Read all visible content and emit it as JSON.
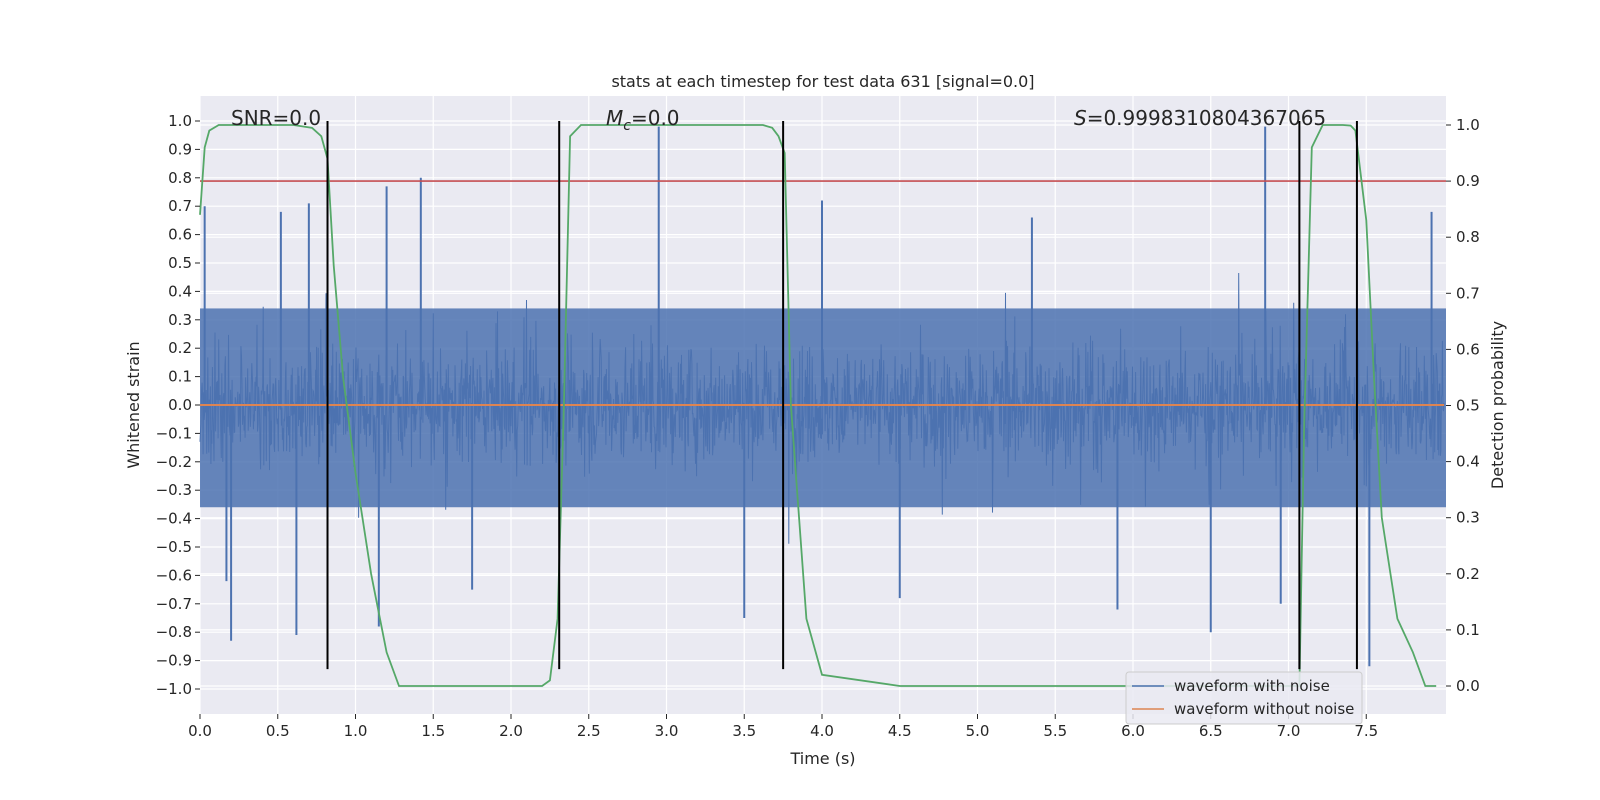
{
  "chart_data": {
    "type": "line",
    "title": "stats at each timestep for test data 631 [signal=0.0]",
    "xlabel": "Time (s)",
    "ylabel": "Whitened strain",
    "ylabel_right": "Detection probability",
    "xlim": [
      0.0,
      8.0
    ],
    "ylim": [
      -1.05,
      1.05
    ],
    "ylim_right": [
      -0.05,
      1.05
    ],
    "x_ticks": [
      0.0,
      0.5,
      1.0,
      1.5,
      2.0,
      2.5,
      3.0,
      3.5,
      4.0,
      4.5,
      5.0,
      5.5,
      6.0,
      6.5,
      7.0,
      7.5
    ],
    "x_tick_labels": [
      "0.0",
      "0.5",
      "1.0",
      "1.5",
      "2.0",
      "2.5",
      "3.0",
      "3.5",
      "4.0",
      "4.5",
      "5.0",
      "5.5",
      "6.0",
      "6.5",
      "7.0",
      "7.5"
    ],
    "y_ticks": [
      -1.0,
      -0.9,
      -0.8,
      -0.7,
      -0.6,
      -0.5,
      -0.4,
      -0.3,
      -0.2,
      -0.1,
      0.0,
      0.1,
      0.2,
      0.3,
      0.4,
      0.5,
      0.6,
      0.7,
      0.8,
      0.9,
      1.0
    ],
    "y_tick_labels": [
      "−1.0",
      "−0.9",
      "−0.8",
      "−0.7",
      "−0.6",
      "−0.5",
      "−0.4",
      "−0.3",
      "−0.2",
      "−0.1",
      "0.0",
      "0.1",
      "0.2",
      "0.3",
      "0.4",
      "0.5",
      "0.6",
      "0.7",
      "0.8",
      "0.9",
      "1.0"
    ],
    "y_right_ticks": [
      0.0,
      0.1,
      0.2,
      0.3,
      0.4,
      0.5,
      0.6,
      0.7,
      0.8,
      0.9,
      1.0
    ],
    "y_right_tick_labels": [
      "0.0",
      "0.1",
      "0.2",
      "0.3",
      "0.4",
      "0.5",
      "0.6",
      "0.7",
      "0.8",
      "0.9",
      "1.0"
    ],
    "grid": true,
    "legend_position": "lower-right",
    "annotations": {
      "snr": "SNR=0.0",
      "mc_symbol": "M",
      "mc_sub": "c",
      "mc_value": "=0.0",
      "s_symbol": "S",
      "s_value": "=0.9998310804367065"
    },
    "series": [
      {
        "name": "waveform with noise",
        "color": "#4c72b0",
        "axis": "left",
        "peaks": [
          {
            "x": 0.03,
            "y": 0.7
          },
          {
            "x": 0.17,
            "y": -0.62
          },
          {
            "x": 0.2,
            "y": -0.83
          },
          {
            "x": 0.52,
            "y": 0.68
          },
          {
            "x": 0.62,
            "y": -0.81
          },
          {
            "x": 0.7,
            "y": 0.71
          },
          {
            "x": 1.2,
            "y": 0.77
          },
          {
            "x": 1.15,
            "y": -0.78
          },
          {
            "x": 1.42,
            "y": 0.8
          },
          {
            "x": 1.75,
            "y": -0.65
          },
          {
            "x": 2.95,
            "y": 0.98
          },
          {
            "x": 3.5,
            "y": -0.75
          },
          {
            "x": 4.0,
            "y": 0.72
          },
          {
            "x": 4.5,
            "y": -0.68
          },
          {
            "x": 5.35,
            "y": 0.66
          },
          {
            "x": 5.9,
            "y": -0.72
          },
          {
            "x": 6.5,
            "y": -0.8
          },
          {
            "x": 6.85,
            "y": 0.98
          },
          {
            "x": 6.95,
            "y": -0.7
          },
          {
            "x": 7.52,
            "y": -0.92
          },
          {
            "x": 7.92,
            "y": 0.68
          }
        ]
      },
      {
        "name": "waveform without noise",
        "color": "#dd8452",
        "axis": "left",
        "x": [
          0.0,
          8.0
        ],
        "y": [
          0.0,
          0.0
        ]
      },
      {
        "name": "detection probability",
        "color": "#55a868",
        "axis": "right",
        "x": [
          0.0,
          0.03,
          0.06,
          0.12,
          0.2,
          0.4,
          0.6,
          0.72,
          0.78,
          0.82,
          0.86,
          0.92,
          1.0,
          1.1,
          1.2,
          1.28,
          1.5,
          1.8,
          2.1,
          2.2,
          2.25,
          2.3,
          2.34,
          2.38,
          2.45,
          2.6,
          3.0,
          3.5,
          3.62,
          3.68,
          3.72,
          3.76,
          3.8,
          3.9,
          4.0,
          4.5,
          5.0,
          6.0,
          6.5,
          6.9,
          7.05,
          7.07,
          7.1,
          7.15,
          7.22,
          7.35,
          7.4,
          7.43,
          7.5,
          7.55,
          7.6,
          7.7,
          7.8,
          7.88,
          7.95
        ],
        "y": [
          0.84,
          0.96,
          0.99,
          1.0,
          1.0,
          1.0,
          1.0,
          0.995,
          0.98,
          0.94,
          0.75,
          0.55,
          0.38,
          0.2,
          0.06,
          0.0,
          0.0,
          0.0,
          0.0,
          0.0,
          0.01,
          0.12,
          0.5,
          0.98,
          1.0,
          1.0,
          1.0,
          1.0,
          1.0,
          0.995,
          0.98,
          0.95,
          0.5,
          0.12,
          0.02,
          0.0,
          0.0,
          0.0,
          0.0,
          0.0,
          0.0,
          0.0,
          0.45,
          0.96,
          1.0,
          1.0,
          0.999,
          0.99,
          0.83,
          0.55,
          0.3,
          0.12,
          0.06,
          0.0,
          0.0
        ]
      }
    ],
    "horizontal_lines": [
      {
        "axis": "right",
        "y": 0.9,
        "color": "#c44e52"
      }
    ],
    "vertical_lines": [
      {
        "x": 0.82,
        "y_from": -0.93,
        "y_to": 1.0
      },
      {
        "x": 2.31,
        "y_from": -0.93,
        "y_to": 1.0
      },
      {
        "x": 3.75,
        "y_from": -0.93,
        "y_to": 1.0
      },
      {
        "x": 7.07,
        "y_from": -0.93,
        "y_to": 1.0
      },
      {
        "x": 7.44,
        "y_from": -0.93,
        "y_to": 1.0
      }
    ],
    "colors": {
      "plot_background": "#eaeaf2",
      "grid": "#ffffff",
      "text": "#262626"
    }
  }
}
